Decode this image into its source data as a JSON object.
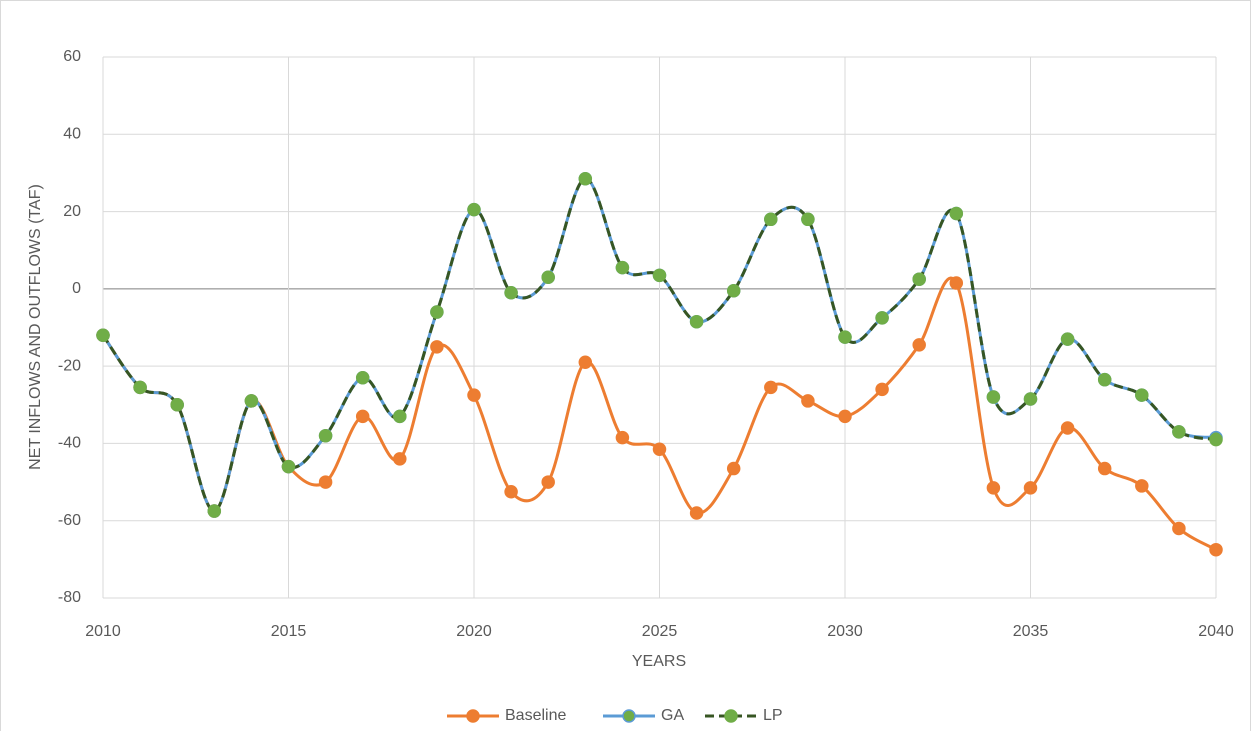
{
  "chart_data": {
    "type": "line",
    "x_label": "YEARS",
    "y_label": "NET INFLOWS AND OUTFLOWS (TAF)",
    "x": [
      2010,
      2011,
      2012,
      2013,
      2014,
      2015,
      2016,
      2017,
      2018,
      2019,
      2020,
      2021,
      2022,
      2023,
      2024,
      2025,
      2026,
      2027,
      2028,
      2029,
      2030,
      2031,
      2032,
      2033,
      2034,
      2035,
      2036,
      2037,
      2038,
      2039,
      2040
    ],
    "series": [
      {
        "name": "Baseline",
        "color": "#ED7D31",
        "marker_color": "#ED7D31",
        "dashed": false,
        "values": [
          -12,
          -25.5,
          -30,
          -57.5,
          -29,
          -46,
          -50,
          -33,
          -44,
          -15,
          -27.5,
          -52.5,
          -50,
          -19,
          -38.5,
          -41.5,
          -58,
          -46.5,
          -25.5,
          -29,
          -33,
          -26,
          -14.5,
          1.5,
          -51.5,
          -51.5,
          -36,
          -46.5,
          -51,
          -62,
          -67.5
        ]
      },
      {
        "name": "GA",
        "color": "#5B9BD5",
        "marker_color": "#70AD47",
        "dashed": false,
        "values": [
          -12,
          -25.5,
          -30,
          -57.5,
          -29,
          -46,
          -38,
          -23,
          -33,
          -6,
          20.5,
          -1,
          3,
          28.5,
          5.5,
          3.5,
          -8.5,
          -0.5,
          18,
          18,
          -12.5,
          -7.5,
          2.5,
          19.5,
          -28,
          -28.5,
          -13,
          -23.5,
          -27.5,
          -37,
          -38.5
        ]
      },
      {
        "name": "LP",
        "color": "#375623",
        "marker_color": "#70AD47",
        "dashed": true,
        "values": [
          -12,
          -25.5,
          -30,
          -57.5,
          -29,
          -46,
          -38,
          -23,
          -33,
          -6,
          20.5,
          -1,
          3,
          28.5,
          5.5,
          3.5,
          -8.5,
          -0.5,
          18,
          18,
          -12.5,
          -7.5,
          2.5,
          19.5,
          -28,
          -28.5,
          -13,
          -23.5,
          -27.5,
          -37,
          -39
        ]
      }
    ],
    "xlim": [
      2010,
      2040
    ],
    "xticks": [
      2010,
      2015,
      2020,
      2025,
      2030,
      2035,
      2040
    ],
    "ylim": [
      -80,
      60
    ],
    "yticks": [
      -80,
      -60,
      -40,
      -20,
      0,
      20,
      40,
      60
    ],
    "grid": true,
    "legend": "bottom"
  }
}
